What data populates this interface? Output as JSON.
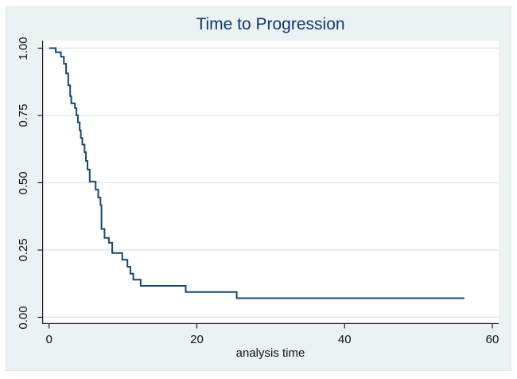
{
  "figure": {
    "title": "Time to Progression",
    "x_axis_title": "analysis time",
    "colors": {
      "figure_background": "#eaf2f3",
      "plot_background": "#ffffff",
      "gridline": "#dfeaee",
      "axis": "#1a1a1a",
      "curve": "#1a476f",
      "title_text": "#13386e",
      "tick_text": "#111111"
    }
  },
  "chart_data": {
    "type": "line",
    "subtype": "kaplan-meier-step-function",
    "title": "Time to Progression",
    "xlabel": "analysis time",
    "ylabel": "",
    "xlim": [
      0,
      60
    ],
    "ylim": [
      0,
      1
    ],
    "x_ticks": [
      {
        "value": 0,
        "label": "0"
      },
      {
        "value": 20,
        "label": "20"
      },
      {
        "value": 40,
        "label": "40"
      },
      {
        "value": 60,
        "label": "60"
      }
    ],
    "y_ticks": [
      {
        "value": 1.0,
        "label": "1.00"
      },
      {
        "value": 0.75,
        "label": "0.75"
      },
      {
        "value": 0.5,
        "label": "0.50"
      },
      {
        "value": 0.25,
        "label": "0.25"
      },
      {
        "value": 0.0,
        "label": "0.00"
      }
    ],
    "grid": "horizontal-only",
    "legend": "none",
    "series": [
      {
        "name": "survivor-function",
        "steps": [
          [
            0,
            1.0
          ],
          [
            0.9,
            0.985
          ],
          [
            1.6,
            0.968
          ],
          [
            2.0,
            0.942
          ],
          [
            2.3,
            0.906
          ],
          [
            2.6,
            0.862
          ],
          [
            2.85,
            0.822
          ],
          [
            3.0,
            0.795
          ],
          [
            3.5,
            0.777
          ],
          [
            3.7,
            0.751
          ],
          [
            3.9,
            0.724
          ],
          [
            4.15,
            0.695
          ],
          [
            4.3,
            0.667
          ],
          [
            4.5,
            0.642
          ],
          [
            4.8,
            0.613
          ],
          [
            5.0,
            0.581
          ],
          [
            5.2,
            0.549
          ],
          [
            5.5,
            0.504
          ],
          [
            6.3,
            0.474
          ],
          [
            6.65,
            0.445
          ],
          [
            6.95,
            0.417
          ],
          [
            7.1,
            0.328
          ],
          [
            7.5,
            0.295
          ],
          [
            8.1,
            0.277
          ],
          [
            8.55,
            0.239
          ],
          [
            9.9,
            0.214
          ],
          [
            10.6,
            0.188
          ],
          [
            11.0,
            0.162
          ],
          [
            11.4,
            0.14
          ],
          [
            12.4,
            0.117
          ],
          [
            18.5,
            0.094
          ],
          [
            25.4,
            0.071
          ],
          [
            56.2,
            0.071
          ]
        ]
      }
    ]
  }
}
